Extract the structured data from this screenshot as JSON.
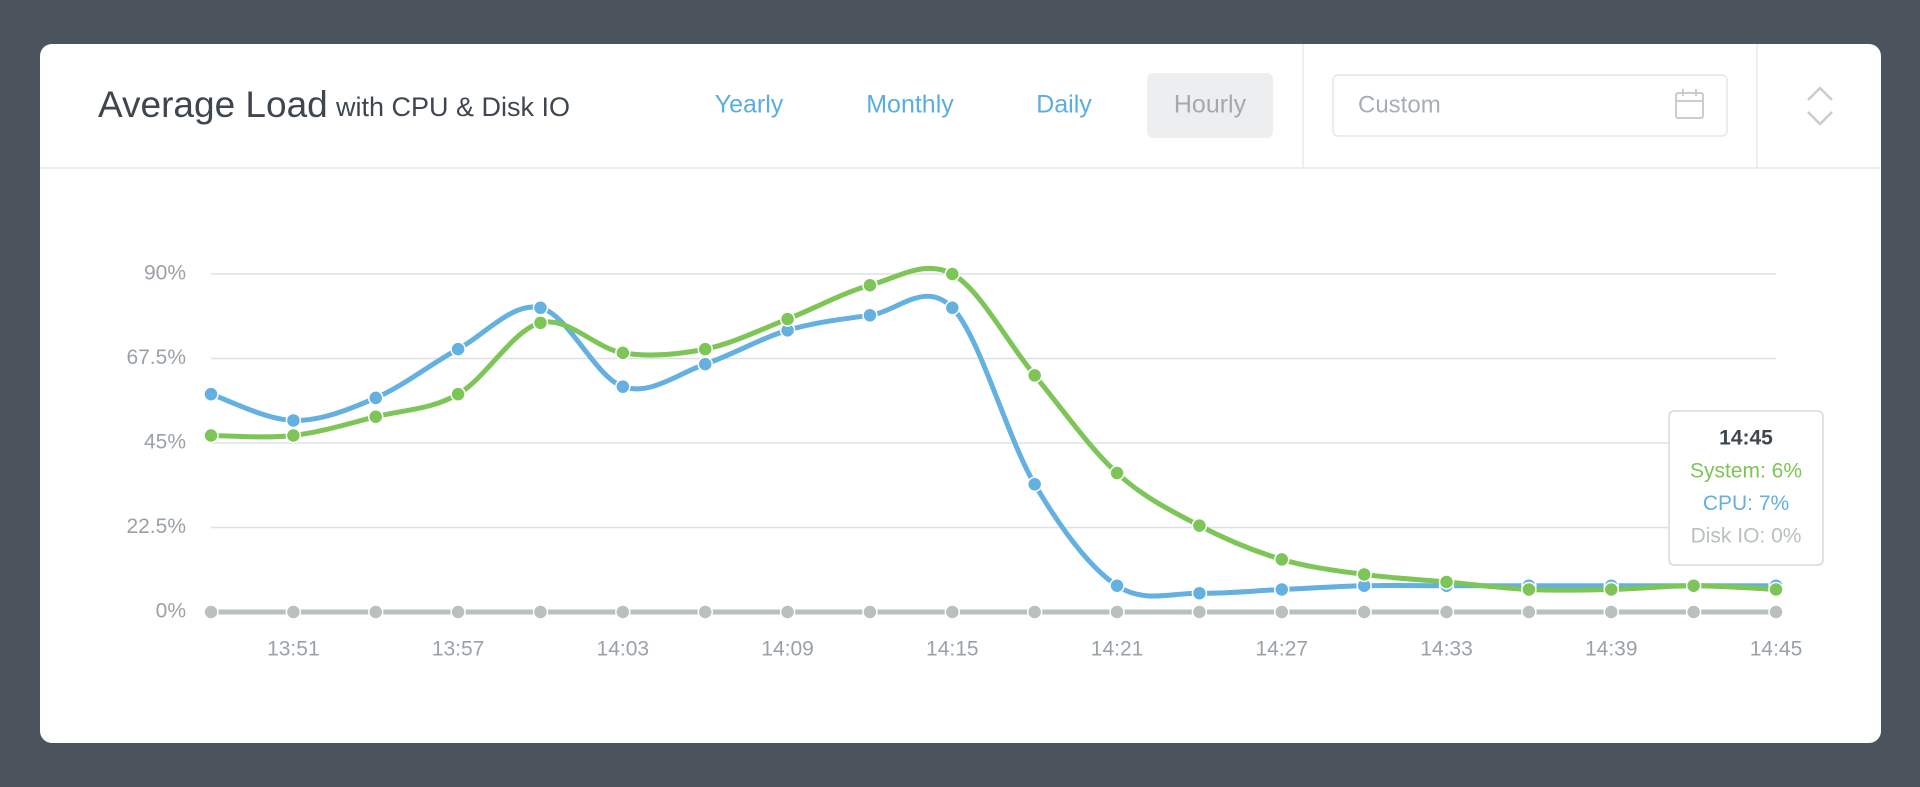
{
  "header": {
    "title": "Average Load",
    "subtitle": "with CPU & Disk IO",
    "tabs": [
      "Yearly",
      "Monthly",
      "Daily",
      "Hourly"
    ],
    "active_tab": 3,
    "custom_placeholder": "Custom"
  },
  "chart_data": {
    "type": "line",
    "categories": [
      null,
      "13:51",
      null,
      "13:57",
      null,
      "14:03",
      null,
      "14:09",
      null,
      "14:15",
      null,
      "14:21",
      null,
      "14:27",
      null,
      "14:33",
      null,
      "14:39",
      null,
      "14:45"
    ],
    "series": [
      {
        "name": "Disk IO",
        "color": "#b9c0bf",
        "values": [
          0,
          0,
          0,
          0,
          0,
          0,
          0,
          0,
          0,
          0,
          0,
          0,
          0,
          0,
          0,
          0,
          0,
          0,
          0,
          0
        ]
      },
      {
        "name": "CPU",
        "color": "#63b0e1",
        "values": [
          58,
          51,
          57,
          70,
          81,
          60,
          66,
          75,
          79,
          81,
          34,
          7,
          5,
          6,
          7,
          7,
          7,
          7,
          7,
          7
        ]
      },
      {
        "name": "System",
        "color": "#7cc556",
        "values": [
          47,
          47,
          52,
          58,
          77,
          69,
          70,
          78,
          87,
          90,
          63,
          37,
          23,
          14,
          10,
          8,
          6,
          6,
          7,
          6
        ]
      }
    ],
    "ylim": [
      0,
      90
    ],
    "yticks": [
      {
        "value": 0,
        "label": "0%"
      },
      {
        "value": 22.5,
        "label": "22.5%"
      },
      {
        "value": 45,
        "label": "45%"
      },
      {
        "value": 67.5,
        "label": "67.5%"
      },
      {
        "value": 90,
        "label": "90%"
      }
    ],
    "grid": true,
    "tooltip": {
      "category": 19,
      "lines": [
        {
          "text": "System: 6%",
          "series": 2
        },
        {
          "text": "CPU: 7%",
          "series": 1
        },
        {
          "text": "Disk IO: 0%",
          "series": 0
        }
      ]
    }
  }
}
